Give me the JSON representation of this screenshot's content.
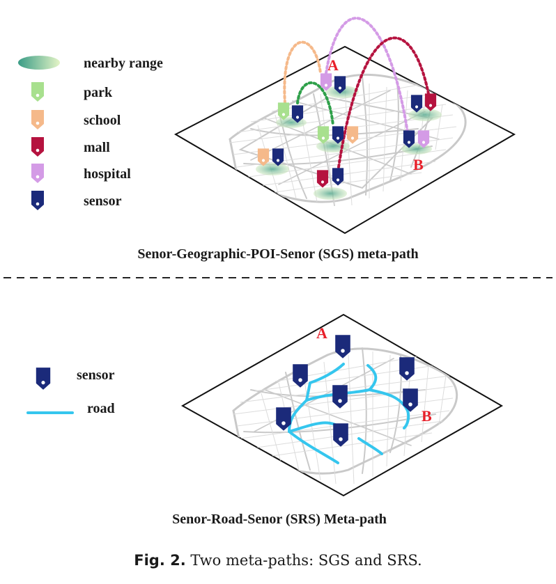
{
  "top_panel": {
    "legend": [
      {
        "label": "nearby range",
        "kind": "range"
      },
      {
        "label": "park",
        "kind": "pin",
        "color": "#a8e08e"
      },
      {
        "label": "school",
        "kind": "pin",
        "color": "#f5b98a"
      },
      {
        "label": "mall",
        "kind": "pin",
        "color": "#b5133f"
      },
      {
        "label": "hospital",
        "kind": "pin",
        "color": "#d49be6"
      },
      {
        "label": "sensor",
        "kind": "pin",
        "color": "#1b2a7a"
      }
    ],
    "point_a": "A",
    "point_b": "B",
    "caption": "Senor-Geographic-POI-Senor (SGS) meta-path"
  },
  "bottom_panel": {
    "legend": [
      {
        "label": "sensor",
        "kind": "pin",
        "color": "#1b2a7a"
      },
      {
        "label": "road",
        "kind": "line",
        "color": "#35c6ee"
      }
    ],
    "point_a": "A",
    "point_b": "B",
    "caption": "Senor-Road-Senor (SRS) Meta-path"
  },
  "figure_caption": {
    "label": "Fig. 2.",
    "text": "Two meta-paths: SGS and SRS."
  },
  "colors": {
    "park": "#a8e08e",
    "school": "#f5b98a",
    "mall": "#b5133f",
    "hospital": "#d49be6",
    "sensor": "#1b2a7a",
    "road": "#35c6ee",
    "label_red": "#e8202a"
  }
}
